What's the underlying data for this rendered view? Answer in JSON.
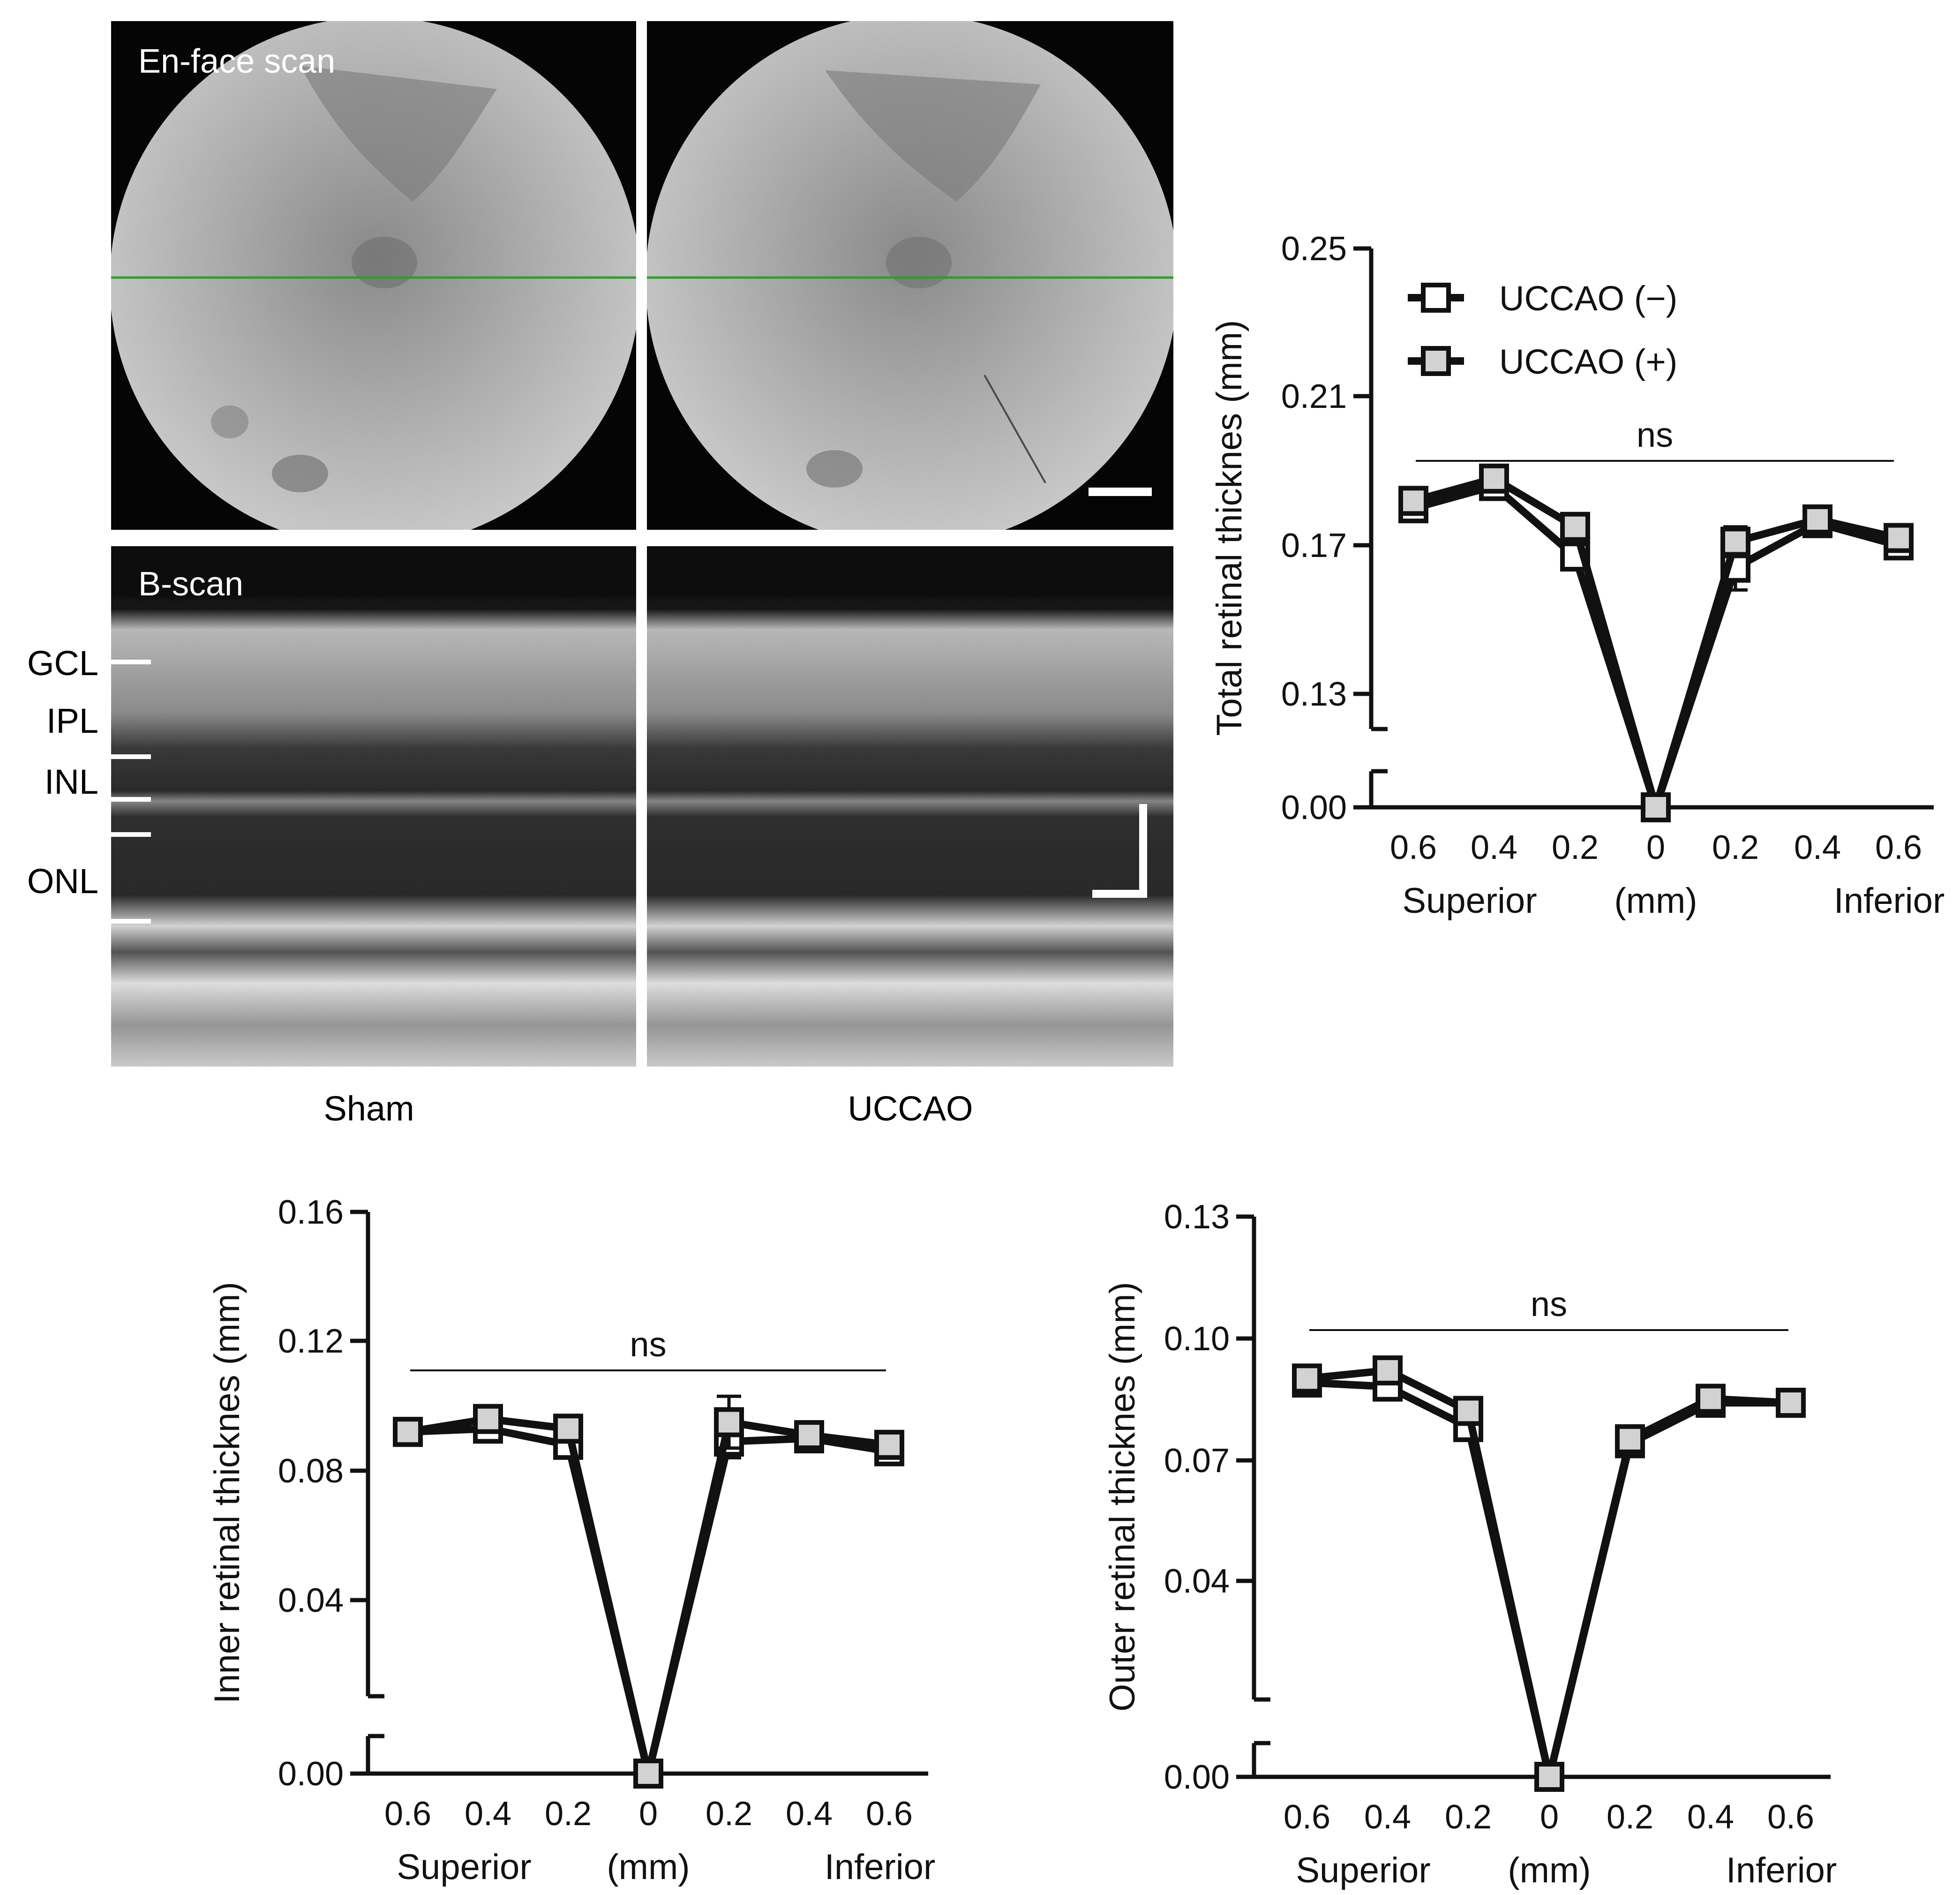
{
  "images": {
    "enface_label": "En-face scan",
    "bscan_label": "B-scan",
    "layers": [
      "GCL",
      "IPL",
      "INL",
      "ONL"
    ],
    "conditions": [
      "Sham",
      "UCCAO"
    ],
    "guide_line_color": "#2aa02a"
  },
  "chart_data": [
    {
      "type": "line",
      "ylabel": "Total retinal thicknes (mm)",
      "x_ticks": [
        "0.6",
        "0.4",
        "0.2",
        "0",
        "0.2",
        "0.4",
        "0.6"
      ],
      "x_caption_left": "Superior",
      "x_caption_center": "(mm)",
      "x_caption_right": "Inferior",
      "y_ticks": [
        "0.00",
        "0.13",
        "0.17",
        "0.21",
        "0.25"
      ],
      "y_tick_values": [
        0,
        0.13,
        0.17,
        0.21,
        0.25
      ],
      "ylim": [
        0,
        0.25
      ],
      "axis_break": true,
      "annotation": "ns",
      "legend": [
        "UCCAO (−)",
        "UCCAO (+)"
      ],
      "legend_position": "top-left",
      "series": [
        {
          "name": "UCCAO (−)",
          "fill": "#ffffff",
          "values": [
            0.18,
            0.186,
            0.167,
            0.0,
            0.164,
            0.176,
            0.17
          ],
          "errors": [
            0.002,
            0.003,
            0.003,
            0,
            0.006,
            0.002,
            0.002
          ]
        },
        {
          "name": "UCCAO (+)",
          "fill": "#d2d2d2",
          "values": [
            0.182,
            0.188,
            0.175,
            0.0,
            0.171,
            0.177,
            0.172
          ],
          "errors": [
            0.002,
            0.003,
            0.002,
            0,
            0.004,
            0.002,
            0.002
          ]
        }
      ]
    },
    {
      "type": "line",
      "ylabel": "Inner retinal thicknes (mm)",
      "x_ticks": [
        "0.6",
        "0.4",
        "0.2",
        "0",
        "0.2",
        "0.4",
        "0.6"
      ],
      "x_caption_left": "Superior",
      "x_caption_center": "(mm)",
      "x_caption_right": "Inferior",
      "y_ticks": [
        "0.00",
        "0.04",
        "0.08",
        "0.12",
        "0.16"
      ],
      "y_tick_values": [
        0,
        0.04,
        0.08,
        0.12,
        0.16
      ],
      "ylim": [
        0,
        0.16
      ],
      "axis_break": true,
      "annotation": "ns",
      "series": [
        {
          "name": "UCCAO (−)",
          "fill": "#ffffff",
          "values": [
            0.092,
            0.093,
            0.088,
            0.0,
            0.089,
            0.09,
            0.086
          ],
          "errors": [
            0.002,
            0.004,
            0.002,
            0,
            0.005,
            0.002,
            0.002
          ]
        },
        {
          "name": "UCCAO (+)",
          "fill": "#d2d2d2",
          "values": [
            0.092,
            0.096,
            0.093,
            0.0,
            0.095,
            0.091,
            0.088
          ],
          "errors": [
            0.002,
            0.003,
            0.002,
            0,
            0.008,
            0.002,
            0.002
          ]
        }
      ]
    },
    {
      "type": "line",
      "ylabel": "Outer retinal thicknes (mm)",
      "x_ticks": [
        "0.6",
        "0.4",
        "0.2",
        "0",
        "0.2",
        "0.4",
        "0.6"
      ],
      "x_caption_left": "Superior",
      "x_caption_center": "(mm)",
      "x_caption_right": "Inferior",
      "y_ticks": [
        "0.00",
        "0.04",
        "0.07",
        "0.10",
        "0.13"
      ],
      "y_tick_values": [
        0,
        0.04,
        0.07,
        0.1,
        0.13
      ],
      "ylim": [
        0,
        0.13
      ],
      "axis_break": true,
      "annotation": "ns",
      "series": [
        {
          "name": "UCCAO (−)",
          "fill": "#ffffff",
          "values": [
            0.089,
            0.088,
            0.078,
            0.0,
            0.074,
            0.084,
            0.084
          ],
          "errors": [
            0.001,
            0.002,
            0.002,
            0,
            0.002,
            0.001,
            0.001
          ]
        },
        {
          "name": "UCCAO (+)",
          "fill": "#d2d2d2",
          "values": [
            0.09,
            0.092,
            0.082,
            0.0,
            0.075,
            0.085,
            0.084
          ],
          "errors": [
            0.001,
            0.002,
            0.001,
            0,
            0.002,
            0.001,
            0.001
          ]
        }
      ]
    }
  ]
}
